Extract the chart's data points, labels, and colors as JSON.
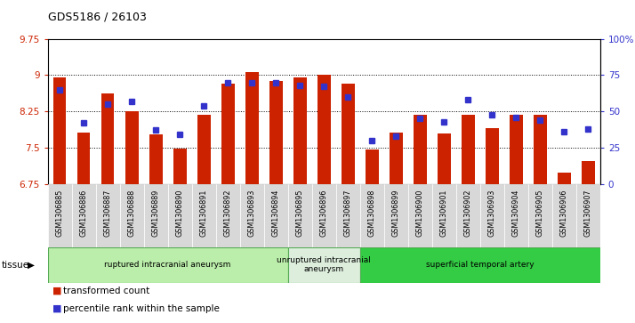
{
  "title": "GDS5186 / 26103",
  "samples": [
    "GSM1306885",
    "GSM1306886",
    "GSM1306887",
    "GSM1306888",
    "GSM1306889",
    "GSM1306890",
    "GSM1306891",
    "GSM1306892",
    "GSM1306893",
    "GSM1306894",
    "GSM1306895",
    "GSM1306896",
    "GSM1306897",
    "GSM1306898",
    "GSM1306899",
    "GSM1306900",
    "GSM1306901",
    "GSM1306902",
    "GSM1306903",
    "GSM1306904",
    "GSM1306905",
    "GSM1306906",
    "GSM1306907"
  ],
  "bar_values": [
    8.95,
    7.82,
    8.62,
    8.25,
    7.78,
    7.48,
    8.18,
    8.82,
    9.06,
    8.88,
    8.95,
    9.0,
    8.82,
    7.47,
    7.82,
    8.18,
    7.8,
    8.18,
    7.9,
    8.18,
    8.18,
    6.98,
    7.22
  ],
  "percentile_values": [
    65,
    42,
    55,
    57,
    37,
    34,
    54,
    70,
    70,
    70,
    68,
    67,
    60,
    30,
    33,
    45,
    43,
    58,
    48,
    46,
    44,
    36,
    38
  ],
  "ylim_left": [
    6.75,
    9.75
  ],
  "ylim_right": [
    0,
    100
  ],
  "yticks_left": [
    6.75,
    7.5,
    8.25,
    9.0,
    9.75
  ],
  "ytick_labels_left": [
    "6.75",
    "7.5",
    "8.25",
    "9",
    "9.75"
  ],
  "yticks_right": [
    0,
    25,
    50,
    75,
    100
  ],
  "ytick_labels_right": [
    "0",
    "25",
    "50",
    "75",
    "100%"
  ],
  "grid_values": [
    7.5,
    8.25,
    9.0
  ],
  "bar_color": "#cc2200",
  "dot_color": "#3333cc",
  "plot_bg_color": "#ffffff",
  "tick_bg_color": "#d8d8d8",
  "tissue_groups": [
    {
      "label": "ruptured intracranial aneurysm",
      "start": 0,
      "end": 10,
      "color": "#bbeeaa",
      "edge": "#55aa55"
    },
    {
      "label": "unruptured intracranial\naneurysm",
      "start": 10,
      "end": 13,
      "color": "#ddeedd",
      "edge": "#55aa55"
    },
    {
      "label": "superficial temporal artery",
      "start": 13,
      "end": 23,
      "color": "#33cc44",
      "edge": "#55aa55"
    }
  ],
  "legend_items": [
    {
      "label": "transformed count",
      "color": "#cc2200"
    },
    {
      "label": "percentile rank within the sample",
      "color": "#3333cc"
    }
  ],
  "tissue_label": "tissue"
}
